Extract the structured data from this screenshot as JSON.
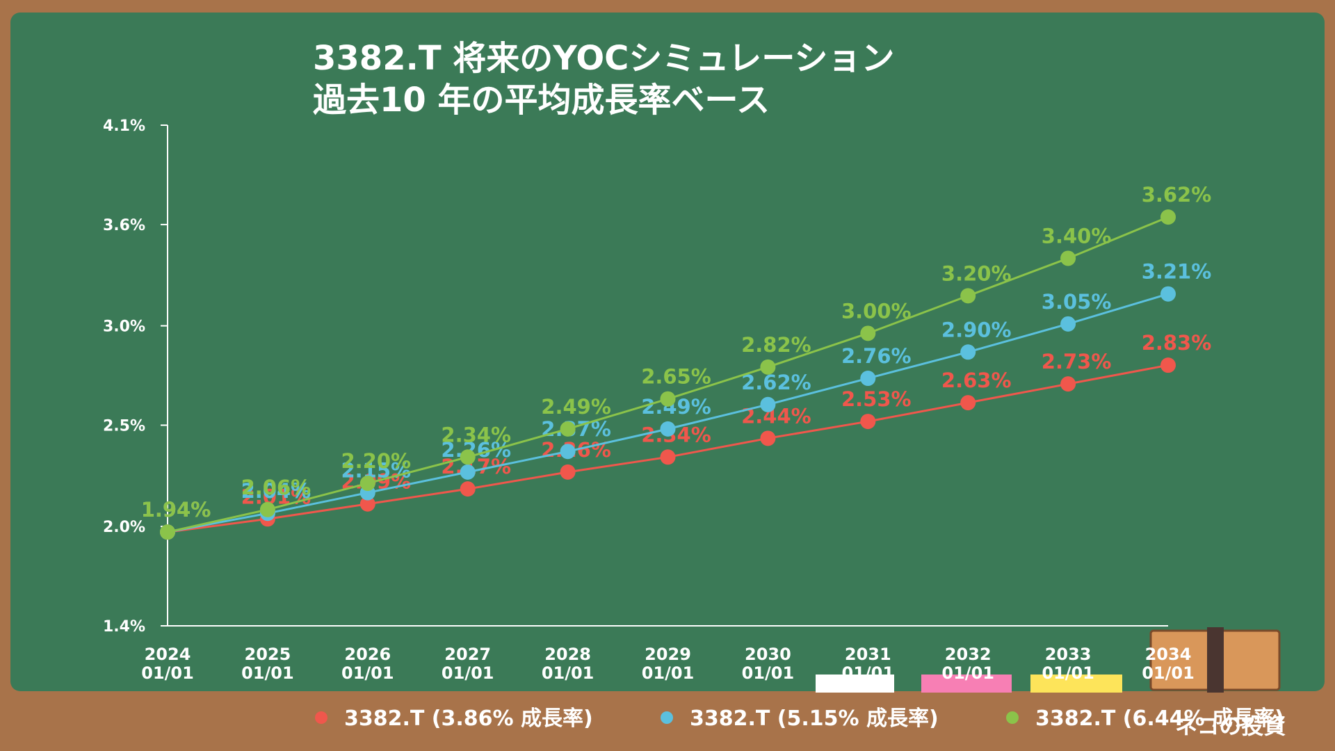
{
  "chart_data": {
    "type": "line",
    "title": "3382.T 将来のYOCシミュレーション",
    "subtitle": "過去10 年の平均成長率ベース",
    "categories": [
      "2024 01/01",
      "2025 01/01",
      "2026 01/01",
      "2027 01/01",
      "2028 01/01",
      "2029 01/01",
      "2030 01/01",
      "2031 01/01",
      "2032 01/01",
      "2033 01/01",
      "2034 01/01"
    ],
    "ylim": [
      1.44,
      4.11
    ],
    "yticks": [
      {
        "value": 1.44,
        "label": "1.4%"
      },
      {
        "value": 1.97,
        "label": "2.0%"
      },
      {
        "value": 2.51,
        "label": "2.5%"
      },
      {
        "value": 3.04,
        "label": "3.0%"
      },
      {
        "value": 3.58,
        "label": "3.6%"
      },
      {
        "value": 4.11,
        "label": "4.1%"
      }
    ],
    "series": [
      {
        "name": "3382.T (3.86% 成長率)",
        "color": "#f0574c",
        "values": [
          1.94,
          2.01,
          2.09,
          2.17,
          2.26,
          2.34,
          2.44,
          2.53,
          2.63,
          2.73,
          2.83
        ],
        "value_labels": [
          "1.94%",
          "2.01%",
          "2.09%",
          "2.17%",
          "2.26%",
          "2.34%",
          "2.44%",
          "2.53%",
          "2.63%",
          "2.73%",
          "2.83%"
        ]
      },
      {
        "name": "3382.T (5.15% 成長率)",
        "color": "#5bc0de",
        "values": [
          1.94,
          2.04,
          2.15,
          2.26,
          2.37,
          2.49,
          2.62,
          2.76,
          2.9,
          3.05,
          3.21
        ],
        "value_labels": [
          "1.94%",
          "2.04%",
          "2.15%",
          "2.26%",
          "2.37%",
          "2.49%",
          "2.62%",
          "2.76%",
          "2.90%",
          "3.05%",
          "3.21%"
        ]
      },
      {
        "name": "3382.T (6.44% 成長率)",
        "color": "#8bc34a",
        "values": [
          1.94,
          2.06,
          2.2,
          2.34,
          2.49,
          2.65,
          2.82,
          3.0,
          3.2,
          3.4,
          3.62
        ],
        "value_labels": [
          "1.94%",
          "2.06%",
          "2.20%",
          "2.34%",
          "2.49%",
          "2.65%",
          "2.82%",
          "3.00%",
          "3.20%",
          "3.40%",
          "3.62%"
        ]
      }
    ]
  },
  "brand": "ネコの投資"
}
